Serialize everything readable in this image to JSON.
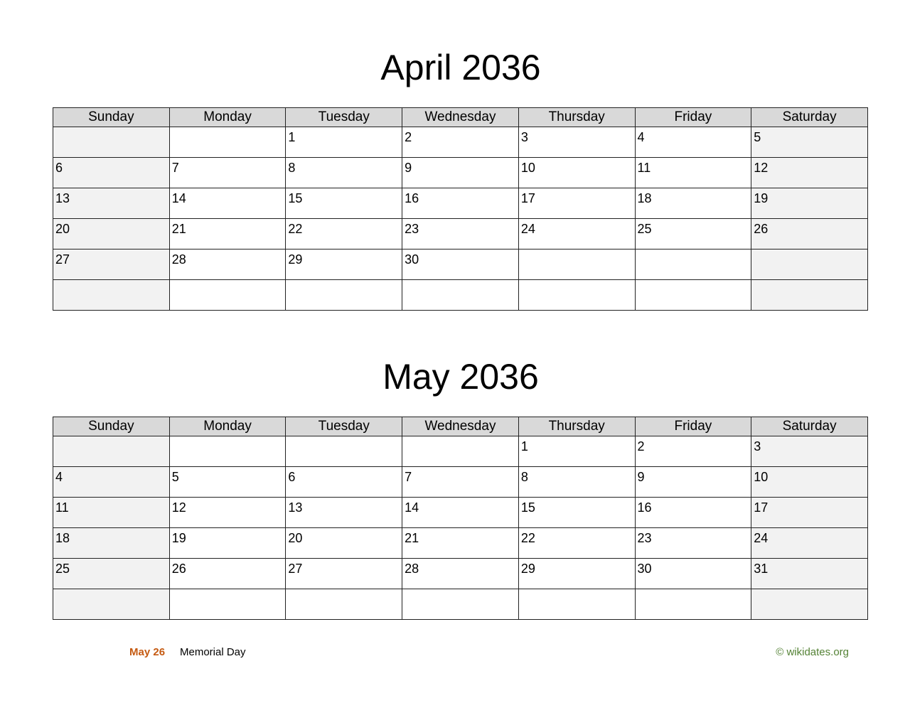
{
  "weekdays": [
    "Sunday",
    "Monday",
    "Tuesday",
    "Wednesday",
    "Thursday",
    "Friday",
    "Saturday"
  ],
  "months": [
    {
      "title": "April 2036",
      "weeks": [
        [
          "",
          "",
          "1",
          "2",
          "3",
          "4",
          "5"
        ],
        [
          "6",
          "7",
          "8",
          "9",
          "10",
          "11",
          "12"
        ],
        [
          "13",
          "14",
          "15",
          "16",
          "17",
          "18",
          "19"
        ],
        [
          "20",
          "21",
          "22",
          "23",
          "24",
          "25",
          "26"
        ],
        [
          "27",
          "28",
          "29",
          "30",
          "",
          "",
          ""
        ],
        [
          "",
          "",
          "",
          "",
          "",
          "",
          ""
        ]
      ]
    },
    {
      "title": "May 2036",
      "weeks": [
        [
          "",
          "",
          "",
          "",
          "1",
          "2",
          "3"
        ],
        [
          "4",
          "5",
          "6",
          "7",
          "8",
          "9",
          "10"
        ],
        [
          "11",
          "12",
          "13",
          "14",
          "15",
          "16",
          "17"
        ],
        [
          "18",
          "19",
          "20",
          "21",
          "22",
          "23",
          "24"
        ],
        [
          "25",
          "26",
          "27",
          "28",
          "29",
          "30",
          "31"
        ],
        [
          "",
          "",
          "",
          "",
          "",
          "",
          ""
        ]
      ]
    }
  ],
  "holidays": [
    {
      "date": "May 26",
      "name": "Memorial Day"
    }
  ],
  "credit": "© wikidates.org",
  "colors": {
    "header_bg": "#d9d9d9",
    "weekend_bg": "#f2f2f2",
    "holiday_date": "#c55a11",
    "credit": "#548235"
  }
}
